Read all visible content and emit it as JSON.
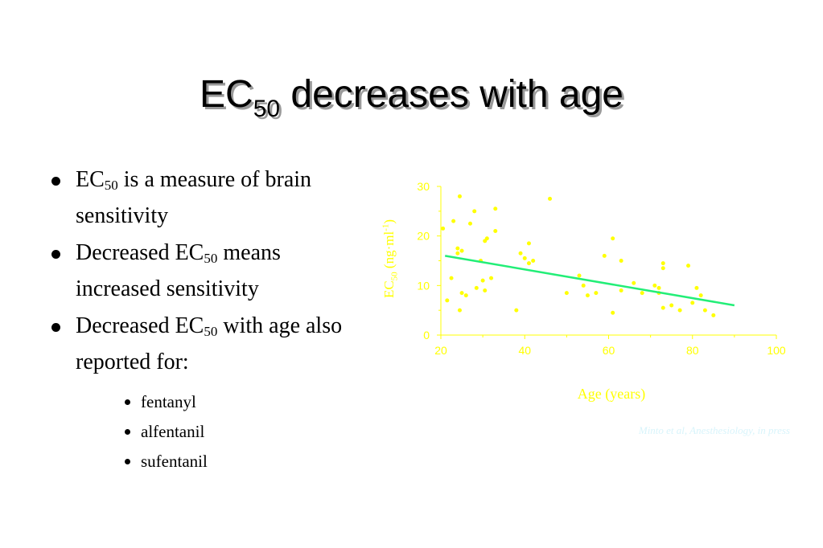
{
  "slide": {
    "title": {
      "main": "EC",
      "sub": "50",
      "rest": " decreases with age"
    },
    "bullets": [
      {
        "pre": "EC",
        "sub": "50",
        "post": " is a measure of brain sensitivity"
      },
      {
        "pre": "Decreased EC",
        "sub": "50",
        "post": " means increased sensitivity"
      },
      {
        "pre": "Decreased EC",
        "sub": "50",
        "post": " with age also reported for:"
      }
    ],
    "subbullets": [
      "fentanyl",
      "alfentanil",
      "sufentanil"
    ],
    "citation": "Minto et al, Anesthesiology, in press"
  },
  "colors": {
    "points": "#ffff00",
    "axis": "#ffff00",
    "fit_line": "#22ee77",
    "citation": "#d8f4fb"
  },
  "chart_data": {
    "type": "scatter",
    "xlabel": "Age (years)",
    "ylabel": {
      "pre": "EC",
      "sub": "50",
      "mid": " (ng·ml",
      "sup": "-1",
      "post": ")"
    },
    "xlim": [
      20,
      100
    ],
    "ylim": [
      0,
      30
    ],
    "xticks": [
      "20",
      "40",
      "60",
      "80",
      "100"
    ],
    "yticks": [
      "0",
      "10",
      "20",
      "30"
    ],
    "points": [
      [
        20.5,
        21.5
      ],
      [
        21.5,
        7
      ],
      [
        22.5,
        11.5
      ],
      [
        23,
        23
      ],
      [
        24,
        17.5
      ],
      [
        24,
        16.5
      ],
      [
        24.5,
        5
      ],
      [
        24.5,
        28
      ],
      [
        25,
        8.5
      ],
      [
        25,
        17
      ],
      [
        26,
        8
      ],
      [
        27,
        22.5
      ],
      [
        28,
        25
      ],
      [
        28.5,
        9.5
      ],
      [
        29.5,
        15
      ],
      [
        30,
        11
      ],
      [
        30.5,
        9
      ],
      [
        30.5,
        19
      ],
      [
        31,
        19.5
      ],
      [
        32,
        11.5
      ],
      [
        33,
        25.5
      ],
      [
        33,
        21
      ],
      [
        38,
        5
      ],
      [
        39,
        16.5
      ],
      [
        40,
        15.5
      ],
      [
        41,
        18.5
      ],
      [
        41,
        14.5
      ],
      [
        42,
        15
      ],
      [
        46,
        27.5
      ],
      [
        50,
        8.5
      ],
      [
        53,
        12
      ],
      [
        54,
        10
      ],
      [
        55,
        8
      ],
      [
        57,
        8.5
      ],
      [
        59,
        16
      ],
      [
        61,
        4.5
      ],
      [
        61,
        19.5
      ],
      [
        63,
        15
      ],
      [
        63,
        9
      ],
      [
        66,
        10.5
      ],
      [
        68,
        8.5
      ],
      [
        71,
        10
      ],
      [
        72,
        8.5
      ],
      [
        72,
        9.5
      ],
      [
        73,
        5.5
      ],
      [
        73,
        14.5
      ],
      [
        73,
        13.5
      ],
      [
        75,
        6
      ],
      [
        77,
        5
      ],
      [
        79,
        14
      ],
      [
        80,
        6.5
      ],
      [
        81,
        9.5
      ],
      [
        82,
        8
      ],
      [
        83,
        5
      ],
      [
        85,
        4
      ]
    ],
    "fit_line": {
      "x": [
        21,
        90
      ],
      "y": [
        16,
        6
      ]
    }
  }
}
